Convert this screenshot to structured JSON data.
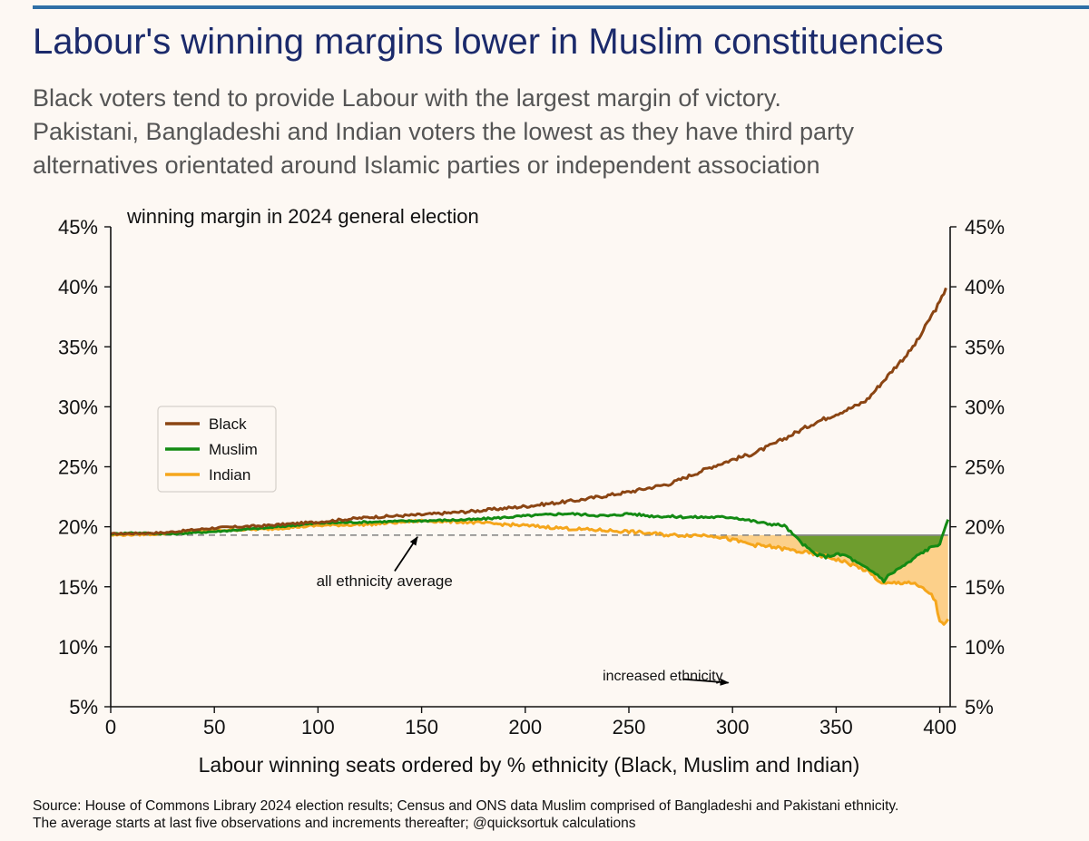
{
  "header": {
    "title": "Labour's winning margins lower in Muslim constituencies",
    "subtitle_lines": [
      "Black voters tend to provide Labour with the largest margin of victory.",
      "Pakistani, Bangladeshi and Indian voters the lowest as they have third party",
      "alternatives orientated around Islamic parties or independent association"
    ]
  },
  "footer": {
    "source_lines": [
      "Source: House of Commons Library 2024 election results; Census and ONS data Muslim comprised of Bangladeshi and Pakistani ethnicity.",
      "The average starts at last five observations and increments thereafter; @quicksortuk calculations"
    ]
  },
  "chart_data": {
    "type": "line",
    "title": "winning margin in 2024 general election",
    "xlabel": "Labour winning seats ordered by % ethnicity (Black, Muslim and Indian)",
    "ylabel": "",
    "xlim": [
      0,
      405
    ],
    "ylim": [
      5,
      45
    ],
    "x_ticks": [
      0,
      50,
      100,
      150,
      200,
      250,
      300,
      350,
      400
    ],
    "x_tick_labels": [
      "0",
      "50",
      "100",
      "150",
      "200",
      "250",
      "300",
      "350",
      "400"
    ],
    "y_ticks": [
      5,
      10,
      15,
      20,
      25,
      30,
      35,
      40,
      45
    ],
    "y_tick_labels": [
      "5%",
      "10%",
      "15%",
      "20%",
      "25%",
      "30%",
      "35%",
      "40%",
      "45%"
    ],
    "y_axis_right_mirror": true,
    "grid": false,
    "legend_position": "left",
    "average_line": {
      "value": 19.3,
      "label": "all ethnicity average",
      "style": "dashed",
      "color": "#808080"
    },
    "annotations": [
      {
        "text": "all ethnicity average",
        "text_x": 150,
        "text_y": 15.5,
        "arrow_to_x": 148,
        "arrow_to_y": 19.3
      },
      {
        "text": "increased ethnicity",
        "text_x": 275,
        "text_y": 7.5,
        "arrow_to_x": 298,
        "arrow_to_y": 7.0
      }
    ],
    "series": [
      {
        "name": "Black",
        "color": "#8b4513",
        "points": [
          [
            0,
            19.4
          ],
          [
            25,
            19.5
          ],
          [
            50,
            19.9
          ],
          [
            75,
            20.1
          ],
          [
            100,
            20.4
          ],
          [
            125,
            20.8
          ],
          [
            150,
            21.0
          ],
          [
            175,
            21.3
          ],
          [
            200,
            21.7
          ],
          [
            225,
            22.2
          ],
          [
            250,
            22.9
          ],
          [
            270,
            23.6
          ],
          [
            290,
            25.0
          ],
          [
            300,
            25.6
          ],
          [
            310,
            26.1
          ],
          [
            320,
            26.9
          ],
          [
            330,
            27.8
          ],
          [
            340,
            28.7
          ],
          [
            350,
            29.4
          ],
          [
            360,
            30.1
          ],
          [
            365,
            30.6
          ],
          [
            370,
            31.6
          ],
          [
            375,
            32.6
          ],
          [
            380,
            33.6
          ],
          [
            385,
            34.5
          ],
          [
            390,
            35.7
          ],
          [
            395,
            37.3
          ],
          [
            400,
            38.7
          ],
          [
            403,
            39.9
          ]
        ]
      },
      {
        "name": "Muslim",
        "color": "#138a13",
        "points": [
          [
            0,
            19.4
          ],
          [
            10,
            19.5
          ],
          [
            30,
            19.4
          ],
          [
            50,
            19.6
          ],
          [
            75,
            19.9
          ],
          [
            100,
            20.3
          ],
          [
            125,
            20.4
          ],
          [
            150,
            20.5
          ],
          [
            175,
            20.6
          ],
          [
            200,
            20.9
          ],
          [
            220,
            21.1
          ],
          [
            240,
            20.9
          ],
          [
            250,
            21.1
          ],
          [
            260,
            20.9
          ],
          [
            280,
            20.8
          ],
          [
            300,
            20.8
          ],
          [
            315,
            20.3
          ],
          [
            325,
            20.1
          ],
          [
            330,
            19.2
          ],
          [
            335,
            18.4
          ],
          [
            340,
            17.7
          ],
          [
            345,
            17.5
          ],
          [
            350,
            17.7
          ],
          [
            355,
            17.6
          ],
          [
            360,
            17.0
          ],
          [
            365,
            16.5
          ],
          [
            370,
            16.0
          ],
          [
            373,
            15.5
          ],
          [
            375,
            15.9
          ],
          [
            380,
            16.5
          ],
          [
            385,
            17.0
          ],
          [
            390,
            17.7
          ],
          [
            395,
            18.2
          ],
          [
            400,
            18.6
          ],
          [
            402,
            19.5
          ],
          [
            404,
            20.6
          ]
        ]
      },
      {
        "name": "Indian",
        "color": "#f5a61c",
        "points": [
          [
            0,
            19.3
          ],
          [
            25,
            19.4
          ],
          [
            50,
            19.7
          ],
          [
            75,
            19.8
          ],
          [
            100,
            20.1
          ],
          [
            125,
            20.2
          ],
          [
            150,
            20.5
          ],
          [
            170,
            20.4
          ],
          [
            200,
            20.1
          ],
          [
            225,
            19.8
          ],
          [
            250,
            19.6
          ],
          [
            270,
            19.3
          ],
          [
            290,
            19.3
          ],
          [
            300,
            18.9
          ],
          [
            310,
            18.5
          ],
          [
            320,
            18.3
          ],
          [
            330,
            18.0
          ],
          [
            340,
            17.7
          ],
          [
            350,
            17.3
          ],
          [
            355,
            17.0
          ],
          [
            360,
            16.7
          ],
          [
            365,
            16.3
          ],
          [
            370,
            15.6
          ],
          [
            372,
            15.2
          ],
          [
            378,
            15.3
          ],
          [
            385,
            15.4
          ],
          [
            390,
            15.0
          ],
          [
            395,
            14.5
          ],
          [
            398,
            13.8
          ],
          [
            400,
            12.0
          ],
          [
            402,
            11.8
          ],
          [
            404,
            12.3
          ]
        ]
      }
    ]
  }
}
